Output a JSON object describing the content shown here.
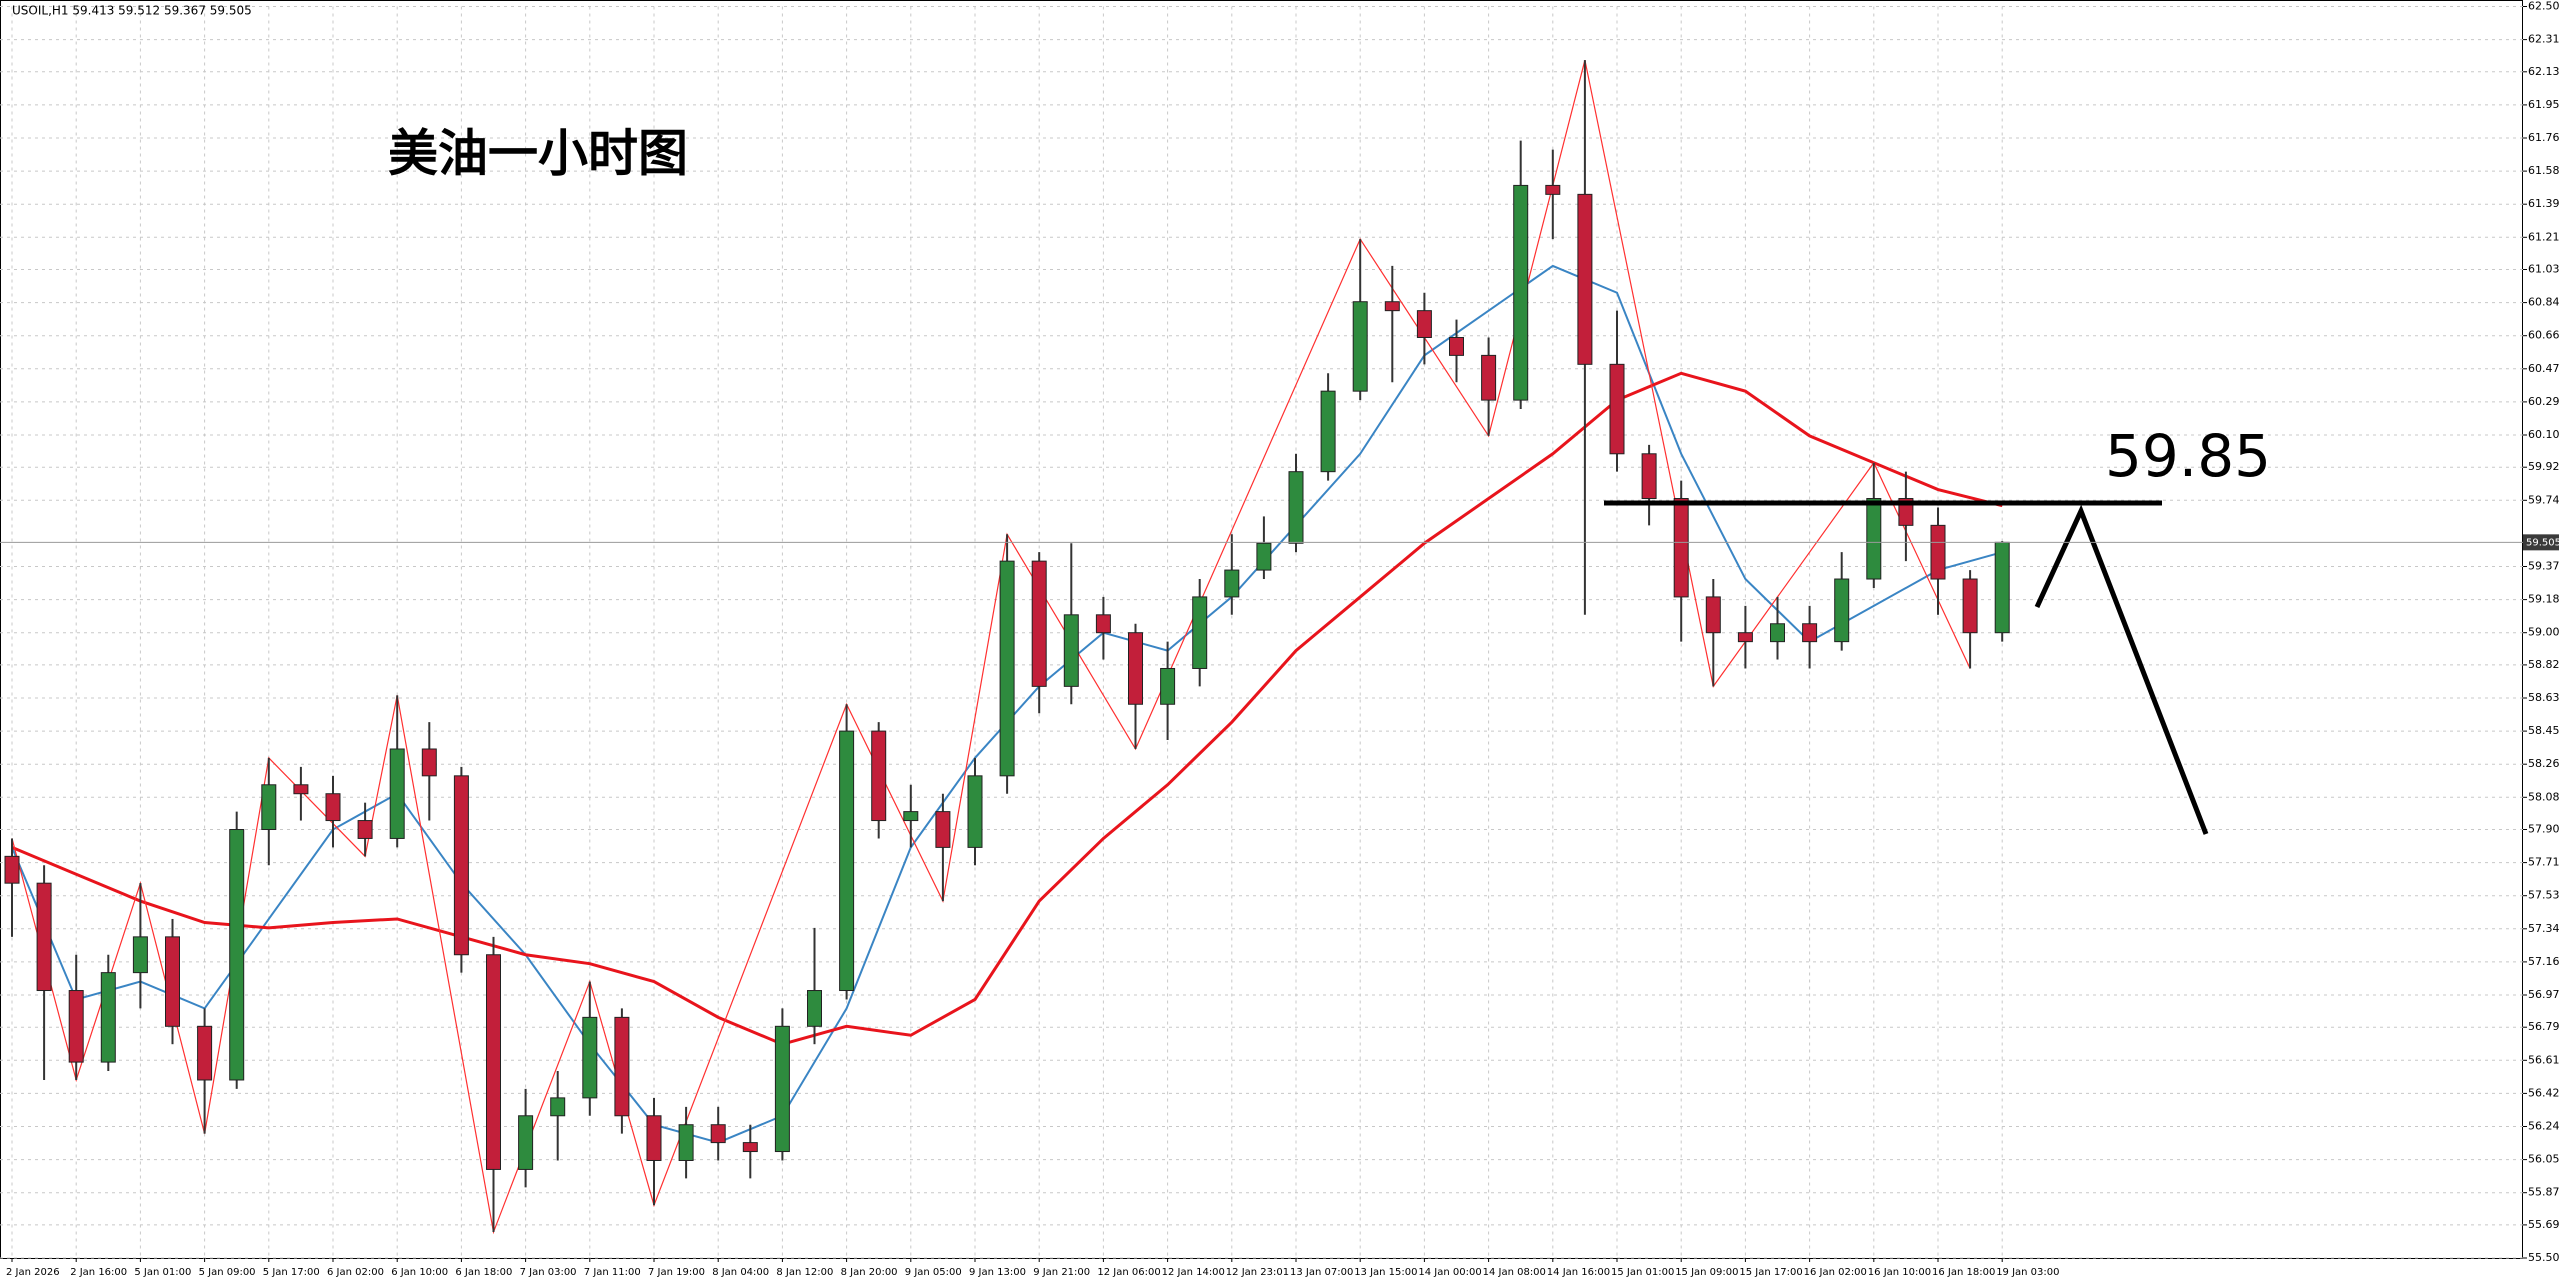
{
  "chart_data": {
    "type": "candlestick",
    "title": "USOIL,H1  59.413 59.512 59.367 59.505",
    "annotation": "美油一小时图",
    "level_label": "59.85",
    "categories": [
      "2 Jan 2026",
      null,
      "2 Jan 16:00",
      null,
      "5 Jan 01:00",
      null,
      "5 Jan 09:00",
      null,
      "5 Jan 17:00",
      null,
      "6 Jan 02:00",
      null,
      "6 Jan 10:00",
      null,
      "6 Jan 18:00",
      null,
      "7 Jan 03:00",
      null,
      "7 Jan 11:00",
      null,
      "7 Jan 19:00",
      null,
      "8 Jan 04:00",
      null,
      "8 Jan 12:00",
      null,
      "8 Jan 20:00",
      null,
      "9 Jan 05:00",
      null,
      "9 Jan 13:00",
      null,
      "9 Jan 21:00",
      null,
      "12 Jan 06:00",
      null,
      "12 Jan 14:00",
      null,
      "12 Jan 23:01",
      null,
      "13 Jan 07:00",
      null,
      "13 Jan 15:00",
      null,
      "14 Jan 00:00",
      null,
      "14 Jan 08:00",
      null,
      "14 Jan 16:00",
      null,
      "15 Jan 01:00",
      null,
      "15 Jan 09:00",
      null,
      "15 Jan 17:00",
      null,
      "16 Jan 02:00",
      null,
      "16 Jan 10:00",
      null,
      "16 Jan 18:00",
      null,
      "19 Jan 03:00"
    ],
    "open": [
      57.75,
      57.6,
      57.0,
      56.6,
      57.1,
      57.3,
      56.8,
      56.5,
      57.9,
      58.15,
      58.1,
      57.95,
      57.85,
      58.35,
      58.2,
      57.2,
      56.0,
      56.3,
      56.4,
      56.85,
      56.3,
      56.05,
      56.25,
      56.15,
      56.1,
      56.8,
      57.0,
      58.45,
      57.95,
      58.0,
      57.8,
      58.2,
      59.4,
      58.7,
      59.1,
      59.0,
      58.6,
      58.8,
      59.2,
      59.35,
      59.5,
      59.9,
      60.35,
      60.85,
      60.8,
      60.65,
      60.55,
      60.3,
      61.5,
      61.45,
      60.5,
      60.0,
      59.75,
      59.2,
      59.0,
      58.95,
      59.05,
      58.95,
      59.3,
      59.75,
      59.6,
      59.3,
      59.0
    ],
    "high": [
      57.85,
      57.7,
      57.2,
      57.2,
      57.6,
      57.4,
      56.9,
      58.0,
      58.3,
      58.25,
      58.2,
      58.05,
      58.65,
      58.5,
      58.25,
      57.3,
      56.45,
      56.55,
      57.05,
      56.9,
      56.4,
      56.35,
      56.35,
      56.25,
      56.9,
      57.35,
      58.6,
      58.5,
      58.15,
      58.1,
      58.3,
      59.55,
      59.45,
      59.5,
      59.2,
      59.05,
      58.95,
      59.3,
      59.55,
      59.65,
      60.0,
      60.45,
      61.2,
      61.05,
      60.9,
      60.75,
      60.65,
      61.75,
      61.7,
      62.2,
      60.8,
      60.05,
      59.85,
      59.3,
      59.15,
      59.2,
      59.15,
      59.45,
      59.95,
      59.9,
      59.7,
      59.35,
      59.512
    ],
    "low": [
      57.3,
      56.5,
      56.5,
      56.55,
      56.9,
      56.7,
      56.2,
      56.45,
      57.7,
      57.95,
      57.8,
      57.75,
      57.8,
      57.95,
      57.1,
      55.65,
      55.9,
      56.05,
      56.3,
      56.2,
      55.8,
      55.95,
      56.05,
      55.95,
      56.05,
      56.7,
      56.95,
      57.85,
      57.8,
      57.5,
      57.7,
      58.1,
      58.55,
      58.6,
      58.85,
      58.35,
      58.4,
      58.7,
      59.1,
      59.3,
      59.45,
      59.85,
      60.3,
      60.4,
      60.5,
      60.4,
      60.1,
      60.25,
      61.2,
      59.1,
      59.9,
      59.6,
      58.95,
      58.7,
      58.8,
      58.85,
      58.8,
      58.9,
      59.25,
      59.4,
      59.1,
      58.8,
      58.95
    ],
    "close": [
      57.6,
      57.0,
      56.6,
      57.1,
      57.3,
      56.8,
      56.5,
      57.9,
      58.15,
      58.1,
      57.95,
      57.85,
      58.35,
      58.2,
      57.2,
      56.0,
      56.3,
      56.4,
      56.85,
      56.3,
      56.05,
      56.25,
      56.15,
      56.1,
      56.8,
      57.0,
      58.45,
      57.95,
      58.0,
      57.8,
      58.2,
      59.4,
      58.7,
      59.1,
      59.0,
      58.6,
      58.8,
      59.2,
      59.35,
      59.5,
      59.9,
      60.35,
      60.85,
      60.8,
      60.65,
      60.55,
      60.3,
      61.5,
      61.45,
      60.5,
      60.0,
      59.75,
      59.2,
      59.0,
      58.95,
      59.05,
      58.95,
      59.3,
      59.75,
      59.6,
      59.3,
      59.0,
      59.505
    ],
    "up_color": "#2e8b3e",
    "down_color": "#c21f3a",
    "wick_color": "#333333",
    "series": [
      {
        "color": "#3a85c4",
        "x": [
          0,
          2,
          4,
          6,
          8,
          10,
          12,
          14,
          16,
          18,
          20,
          22,
          24,
          26,
          28,
          30,
          32,
          34,
          36,
          38,
          40,
          42,
          44,
          46,
          48,
          50,
          52,
          54,
          56,
          58,
          60,
          62
        ],
        "values": [
          57.8,
          56.95,
          57.05,
          56.9,
          57.4,
          57.9,
          58.1,
          57.6,
          57.2,
          56.7,
          56.25,
          56.15,
          56.3,
          56.9,
          57.8,
          58.3,
          58.7,
          59.0,
          58.9,
          59.2,
          59.6,
          60.0,
          60.55,
          60.8,
          61.05,
          60.9,
          60.0,
          59.3,
          58.95,
          59.15,
          59.35,
          59.45
        ]
      },
      {
        "color": "#e8141c",
        "x": [
          0,
          2,
          4,
          6,
          8,
          10,
          12,
          14,
          16,
          18,
          20,
          22,
          24,
          26,
          28,
          30,
          32,
          34,
          36,
          38,
          40,
          42,
          44,
          46,
          48,
          50,
          52,
          54,
          56,
          58,
          60,
          62
        ],
        "values": [
          57.8,
          57.65,
          57.5,
          57.38,
          57.35,
          57.38,
          57.4,
          57.3,
          57.2,
          57.15,
          57.05,
          56.85,
          56.7,
          56.8,
          56.75,
          56.95,
          57.5,
          57.85,
          58.15,
          58.5,
          58.9,
          59.2,
          59.5,
          59.75,
          60.0,
          60.3,
          60.45,
          60.35,
          60.1,
          59.95,
          59.8,
          59.71
        ]
      }
    ],
    "zigzag": {
      "color": "#ff3030",
      "x": [
        0,
        2,
        4,
        6,
        8,
        11,
        12,
        15,
        18,
        20,
        26,
        29,
        31,
        35,
        42,
        46,
        49,
        53,
        58,
        61
      ],
      "values": [
        57.85,
        56.5,
        57.6,
        56.2,
        58.3,
        57.75,
        58.65,
        55.65,
        57.05,
        55.8,
        58.6,
        57.5,
        59.55,
        58.35,
        61.2,
        60.1,
        62.2,
        58.7,
        59.95,
        58.8
      ]
    },
    "ylim": [
      55.505,
      62.5
    ],
    "yticks": [
      55.505,
      {
        "value": 55.69,
        "label": "55.690"
      },
      {
        "value": 55.87,
        "label": "55.870"
      },
      56.055,
      {
        "value": 56.24,
        "label": "56.240"
      },
      56.425,
      {
        "value": 56.61,
        "label": "56.610"
      },
      56.795,
      56.975,
      {
        "value": 57.16,
        "label": "57.160"
      },
      57.345,
      {
        "value": 57.53,
        "label": "57.530"
      },
      57.715,
      {
        "value": 57.9,
        "label": "57.900"
      },
      {
        "value": 58.08,
        "label": "58.080"
      },
      58.265,
      {
        "value": 58.45,
        "label": "58.450"
      },
      58.635,
      {
        "value": 58.82,
        "label": "58.820"
      },
      {
        "value": 59,
        "label": "59.000"
      },
      59.185,
      {
        "value": 59.37,
        "label": "59.370"
      },
      {
        "value": 59.74,
        "label": "59.740"
      },
      59.925,
      60.105,
      {
        "value": 60.29,
        "label": "60.290"
      },
      60.475,
      {
        "value": 60.66,
        "label": "60.660"
      },
      60.845,
      {
        "value": 61.03,
        "label": "61.030"
      },
      {
        "value": 61.21,
        "label": "61.210"
      },
      61.395,
      {
        "value": 61.58,
        "label": "61.580"
      },
      61.765,
      {
        "value": 61.95,
        "label": "61.950"
      },
      62.135,
      62.315,
      {
        "value": 62.5,
        "label": "62.500"
      }
    ],
    "grid": true
  }
}
